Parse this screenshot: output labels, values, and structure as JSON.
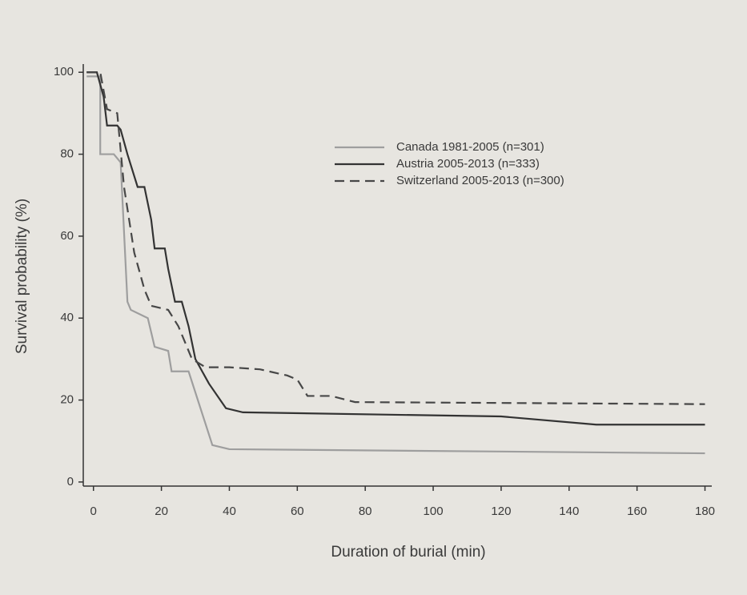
{
  "chart_data": {
    "type": "line",
    "x_label": "Duration of burial (min)",
    "y_label": "Survival probability (%)",
    "xlim": [
      -3,
      182
    ],
    "ylim": [
      -1,
      102
    ],
    "xticks": [
      0,
      20,
      40,
      60,
      80,
      100,
      120,
      140,
      160,
      180
    ],
    "yticks": [
      0,
      20,
      40,
      60,
      80,
      100
    ],
    "series": [
      {
        "name": "Canada 1981-2005 (n=301)",
        "color": "#9e9e9e",
        "dash": "solid",
        "x": [
          -2,
          2,
          2,
          6,
          8,
          10,
          11,
          16,
          18,
          22,
          23,
          28,
          35,
          40,
          180
        ],
        "values": [
          99,
          99,
          80,
          80,
          78,
          44,
          42,
          40,
          33,
          32,
          27,
          27,
          9,
          8,
          7
        ]
      },
      {
        "name": "Austria 2005-2013 (n=333)",
        "color": "#333333",
        "dash": "solid",
        "x": [
          -2,
          1,
          3,
          4,
          7,
          8,
          10,
          13,
          15,
          17,
          18,
          21,
          22,
          24,
          26,
          28,
          30,
          34,
          39,
          44,
          120,
          148,
          180
        ],
        "values": [
          100,
          100,
          94,
          87,
          87,
          86,
          80,
          72,
          72,
          64,
          57,
          57,
          52,
          44,
          44,
          38,
          30,
          24,
          18,
          17,
          16,
          14,
          14
        ]
      },
      {
        "name": "Switzerland 2005-2013 (n=300)",
        "color": "#474747",
        "dash": "dashed",
        "x": [
          -2,
          2,
          4,
          7,
          9,
          12,
          15,
          17,
          22,
          25,
          29,
          33,
          40,
          49,
          57,
          60,
          63,
          70,
          77,
          180
        ],
        "values": [
          100,
          100,
          91,
          90,
          72,
          56,
          47,
          43,
          42,
          38,
          30,
          28,
          28,
          27.5,
          26,
          25,
          21,
          21,
          19.5,
          19
        ]
      }
    ]
  }
}
